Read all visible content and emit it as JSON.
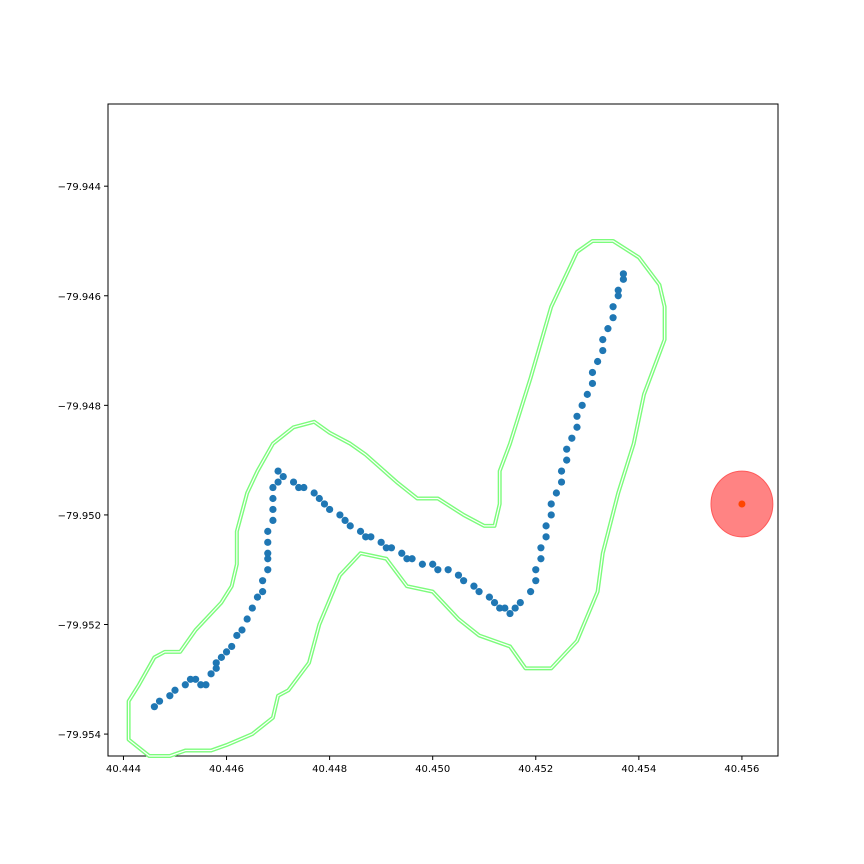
{
  "chart_data": {
    "type": "scatter",
    "title": "",
    "xlabel": "",
    "ylabel": "",
    "xlim": [
      40.4437,
      40.4567
    ],
    "ylim": [
      -79.9544,
      -79.9425
    ],
    "grid": false,
    "xticks": [
      "40.444",
      "40.446",
      "40.448",
      "40.450",
      "40.452",
      "40.454",
      "40.456"
    ],
    "yticks": [
      "−79.944",
      "−79.946",
      "−79.948",
      "−79.950",
      "−79.952",
      "−79.954"
    ],
    "xtick_values": [
      40.444,
      40.446,
      40.448,
      40.45,
      40.452,
      40.454,
      40.456
    ],
    "ytick_values": [
      -79.944,
      -79.946,
      -79.948,
      -79.95,
      -79.952,
      -79.954
    ],
    "colors": {
      "track": "#1f77b4",
      "corridor": "#7cfc7c",
      "target_fill": "#ff5a5a",
      "target_center": "#ff4500",
      "axes": "#000000"
    },
    "corridor": {
      "x": [
        40.4447,
        40.4445,
        40.4441,
        40.4441,
        40.4443,
        40.4446,
        40.4448,
        40.4451,
        40.4454,
        40.4459,
        40.4461,
        40.4462,
        40.4462,
        40.4464,
        40.4466,
        40.4469,
        40.4473,
        40.4477,
        40.448,
        40.4484,
        40.4487,
        40.4493,
        40.4497,
        40.4501,
        40.4506,
        40.451,
        40.4512,
        40.4513,
        40.4513,
        40.4515,
        40.4519,
        40.4523,
        40.4528,
        40.4531,
        40.4535,
        40.454,
        40.4544,
        40.4545,
        40.4545,
        40.4543,
        40.4541,
        40.4539,
        40.4536,
        40.4533,
        40.4532,
        40.4528,
        40.4523,
        40.4518,
        40.4515,
        40.4509,
        40.4505,
        40.45,
        40.4495,
        40.4491,
        40.4486,
        40.4482,
        40.4478,
        40.4476,
        40.4472,
        40.447,
        40.4469,
        40.4465,
        40.446,
        40.4457,
        40.4452,
        40.4449,
        40.4447
      ],
      "y": [
        -79.9544,
        -79.9544,
        -79.9541,
        -79.9534,
        -79.9531,
        -79.9526,
        -79.9525,
        -79.9525,
        -79.9521,
        -79.9516,
        -79.9513,
        -79.9509,
        -79.9503,
        -79.9496,
        -79.9492,
        -79.9487,
        -79.9484,
        -79.9483,
        -79.9485,
        -79.9487,
        -79.9489,
        -79.9494,
        -79.9497,
        -79.9497,
        -79.95,
        -79.9502,
        -79.9502,
        -79.9498,
        -79.9492,
        -79.9487,
        -79.9475,
        -79.9462,
        -79.9452,
        -79.945,
        -79.945,
        -79.9453,
        -79.9458,
        -79.9462,
        -79.9468,
        -79.9473,
        -79.9478,
        -79.9487,
        -79.9496,
        -79.9507,
        -79.9514,
        -79.9523,
        -79.9528,
        -79.9528,
        -79.9524,
        -79.9522,
        -79.9519,
        -79.9514,
        -79.9513,
        -79.9508,
        -79.9507,
        -79.9511,
        -79.952,
        -79.9527,
        -79.9532,
        -79.9533,
        -79.9537,
        -79.954,
        -79.9542,
        -79.9543,
        -79.9543,
        -79.9544,
        -79.9544
      ]
    },
    "track": {
      "x": [
        40.4446,
        40.4447,
        40.4449,
        40.445,
        40.4452,
        40.4453,
        40.4454,
        40.4455,
        40.4456,
        40.4457,
        40.4458,
        40.4458,
        40.4459,
        40.446,
        40.4461,
        40.4462,
        40.4463,
        40.4464,
        40.4465,
        40.4466,
        40.4467,
        40.4467,
        40.4468,
        40.4468,
        40.4468,
        40.4468,
        40.4468,
        40.4469,
        40.4469,
        40.4469,
        40.4469,
        40.447,
        40.447,
        40.4471,
        40.4473,
        40.4474,
        40.4475,
        40.4477,
        40.4478,
        40.4479,
        40.448,
        40.4482,
        40.4483,
        40.4484,
        40.4486,
        40.4487,
        40.4488,
        40.449,
        40.4491,
        40.4492,
        40.4494,
        40.4495,
        40.4496,
        40.4498,
        40.45,
        40.4501,
        40.4503,
        40.4505,
        40.4506,
        40.4508,
        40.4509,
        40.4511,
        40.4512,
        40.4513,
        40.4514,
        40.4515,
        40.4516,
        40.4517,
        40.4519,
        40.452,
        40.452,
        40.4521,
        40.4521,
        40.4522,
        40.4522,
        40.4523,
        40.4523,
        40.4524,
        40.4525,
        40.4525,
        40.4526,
        40.4526,
        40.4527,
        40.4528,
        40.4528,
        40.4529,
        40.453,
        40.4531,
        40.4531,
        40.4532,
        40.4533,
        40.4533,
        40.4534,
        40.4535,
        40.4535,
        40.4536,
        40.4536,
        40.4537,
        40.4537
      ],
      "y": [
        -79.9535,
        -79.9534,
        -79.9533,
        -79.9532,
        -79.9531,
        -79.953,
        -79.953,
        -79.9531,
        -79.9531,
        -79.9529,
        -79.9528,
        -79.9527,
        -79.9526,
        -79.9525,
        -79.9524,
        -79.9522,
        -79.9521,
        -79.9519,
        -79.9517,
        -79.9515,
        -79.9514,
        -79.9512,
        -79.951,
        -79.9508,
        -79.9507,
        -79.9505,
        -79.9503,
        -79.9501,
        -79.9499,
        -79.9497,
        -79.9495,
        -79.9494,
        -79.9492,
        -79.9493,
        -79.9494,
        -79.9495,
        -79.9495,
        -79.9496,
        -79.9497,
        -79.9498,
        -79.9499,
        -79.95,
        -79.9501,
        -79.9502,
        -79.9503,
        -79.9504,
        -79.9504,
        -79.9505,
        -79.9506,
        -79.9506,
        -79.9507,
        -79.9508,
        -79.9508,
        -79.9509,
        -79.9509,
        -79.951,
        -79.951,
        -79.9511,
        -79.9512,
        -79.9513,
        -79.9514,
        -79.9515,
        -79.9516,
        -79.9517,
        -79.9517,
        -79.9518,
        -79.9517,
        -79.9516,
        -79.9514,
        -79.9512,
        -79.951,
        -79.9508,
        -79.9506,
        -79.9504,
        -79.9502,
        -79.95,
        -79.9498,
        -79.9496,
        -79.9494,
        -79.9492,
        -79.949,
        -79.9488,
        -79.9486,
        -79.9484,
        -79.9482,
        -79.948,
        -79.9478,
        -79.9476,
        -79.9474,
        -79.9472,
        -79.947,
        -79.9468,
        -79.9466,
        -79.9464,
        -79.9462,
        -79.946,
        -79.9459,
        -79.9457,
        -79.9456
      ]
    },
    "target": {
      "x": 40.456,
      "y": -79.9498,
      "radius_x": 0.0006,
      "radius_y": 0.0006
    }
  }
}
